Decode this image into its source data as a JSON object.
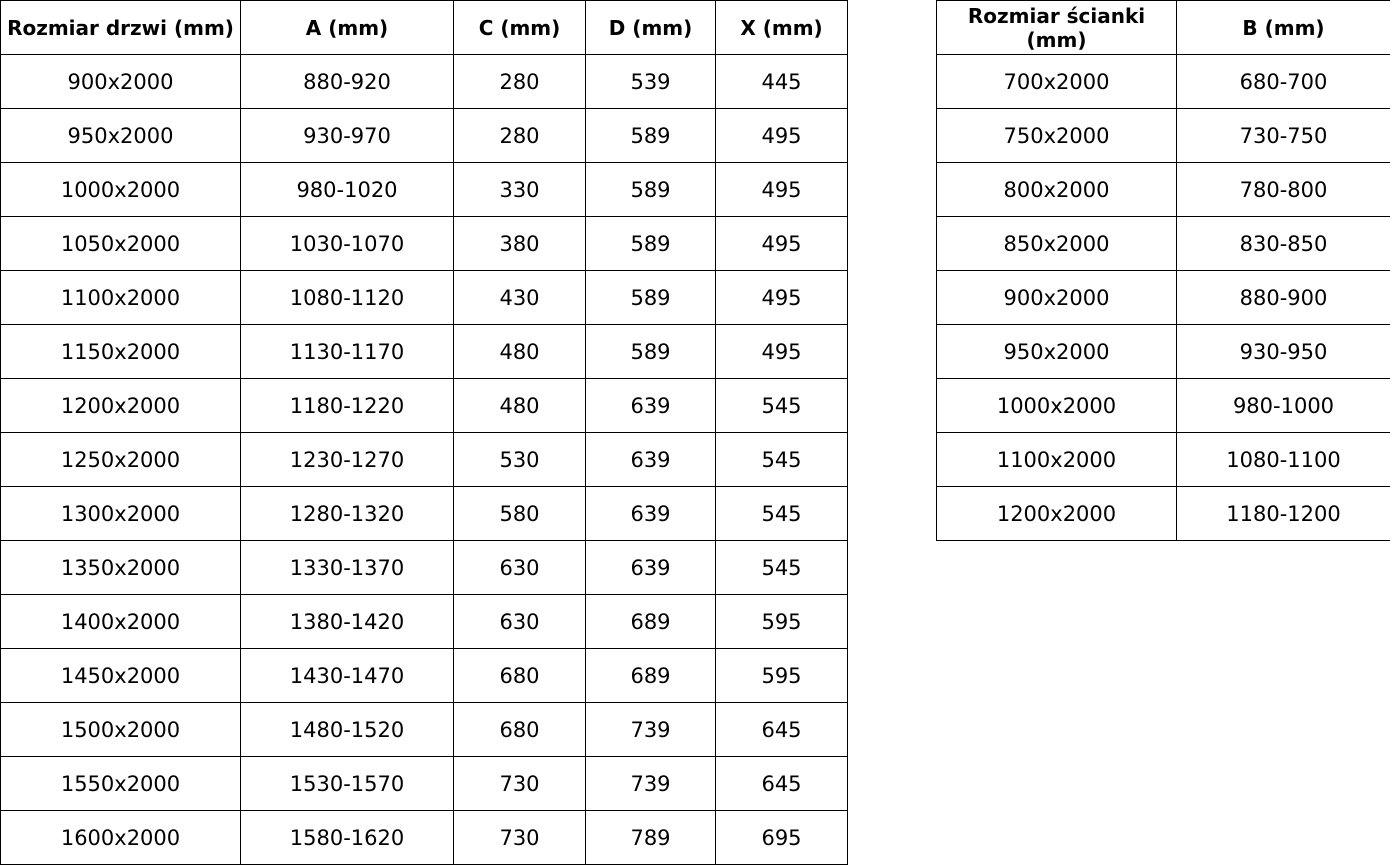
{
  "doors_table": {
    "headers": [
      "Rozmiar drzwi (mm)",
      "A (mm)",
      "C (mm)",
      "D (mm)",
      "X (mm)"
    ],
    "rows": [
      [
        "900x2000",
        "880-920",
        "280",
        "539",
        "445"
      ],
      [
        "950x2000",
        "930-970",
        "280",
        "589",
        "495"
      ],
      [
        "1000x2000",
        "980-1020",
        "330",
        "589",
        "495"
      ],
      [
        "1050x2000",
        "1030-1070",
        "380",
        "589",
        "495"
      ],
      [
        "1100x2000",
        "1080-1120",
        "430",
        "589",
        "495"
      ],
      [
        "1150x2000",
        "1130-1170",
        "480",
        "589",
        "495"
      ],
      [
        "1200x2000",
        "1180-1220",
        "480",
        "639",
        "545"
      ],
      [
        "1250x2000",
        "1230-1270",
        "530",
        "639",
        "545"
      ],
      [
        "1300x2000",
        "1280-1320",
        "580",
        "639",
        "545"
      ],
      [
        "1350x2000",
        "1330-1370",
        "630",
        "639",
        "545"
      ],
      [
        "1400x2000",
        "1380-1420",
        "630",
        "689",
        "595"
      ],
      [
        "1450x2000",
        "1430-1470",
        "680",
        "689",
        "595"
      ],
      [
        "1500x2000",
        "1480-1520",
        "680",
        "739",
        "645"
      ],
      [
        "1550x2000",
        "1530-1570",
        "730",
        "739",
        "645"
      ],
      [
        "1600x2000",
        "1580-1620",
        "730",
        "789",
        "695"
      ]
    ]
  },
  "walls_table": {
    "headers": [
      "Rozmiar ścianki (mm)",
      "B (mm)"
    ],
    "rows": [
      [
        "700x2000",
        "680-700"
      ],
      [
        "750x2000",
        "730-750"
      ],
      [
        "800x2000",
        "780-800"
      ],
      [
        "850x2000",
        "830-850"
      ],
      [
        "900x2000",
        "880-900"
      ],
      [
        "950x2000",
        "930-950"
      ],
      [
        "1000x2000",
        "980-1000"
      ],
      [
        "1100x2000",
        "1080-1100"
      ],
      [
        "1200x2000",
        "1180-1200"
      ]
    ]
  }
}
